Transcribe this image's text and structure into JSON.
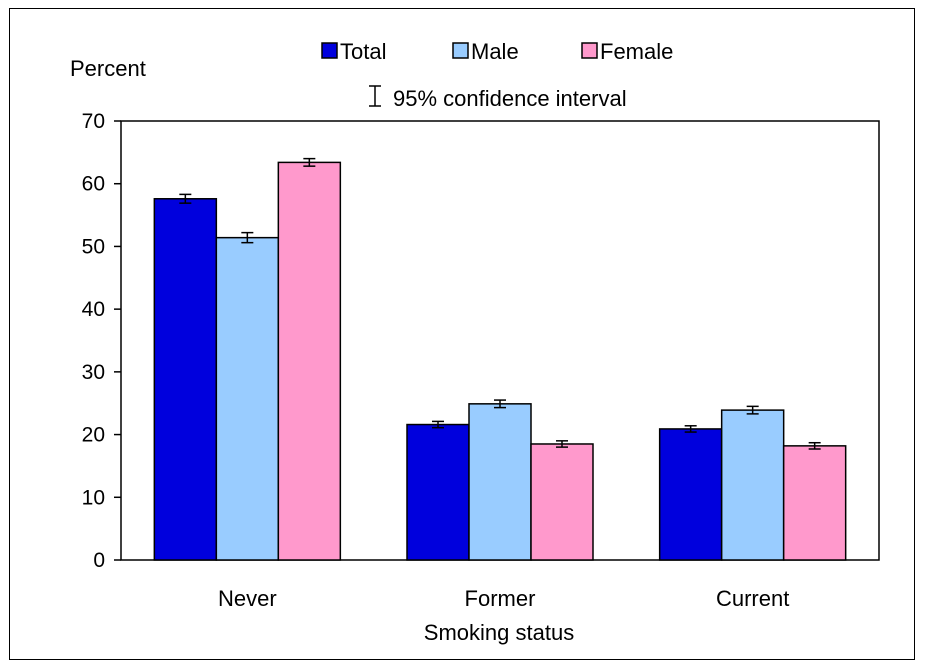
{
  "chart_data": {
    "type": "bar",
    "categories": [
      "Never",
      "Former",
      "Current"
    ],
    "series": [
      {
        "name": "Total",
        "color": "#0000dd",
        "values": [
          57.6,
          21.6,
          20.9
        ],
        "ci": [
          [
            56.9,
            58.3
          ],
          [
            21.1,
            22.1
          ],
          [
            20.4,
            21.4
          ]
        ]
      },
      {
        "name": "Male",
        "color": "#99ccff",
        "values": [
          51.4,
          24.9,
          23.9
        ],
        "ci": [
          [
            50.6,
            52.2
          ],
          [
            24.3,
            25.5
          ],
          [
            23.3,
            24.5
          ]
        ]
      },
      {
        "name": "Female",
        "color": "#ff99cc",
        "values": [
          63.4,
          18.5,
          18.2
        ],
        "ci": [
          [
            62.8,
            64.0
          ],
          [
            18.0,
            19.0
          ],
          [
            17.7,
            18.7
          ]
        ]
      }
    ],
    "ylabel": "Percent",
    "xlabel": "Smoking status",
    "ylim": [
      0,
      70
    ],
    "yticks": [
      0,
      10,
      20,
      30,
      40,
      50,
      60,
      70
    ],
    "legend_position": "top",
    "ci_legend_label": "95% confidence interval",
    "grid": false
  }
}
